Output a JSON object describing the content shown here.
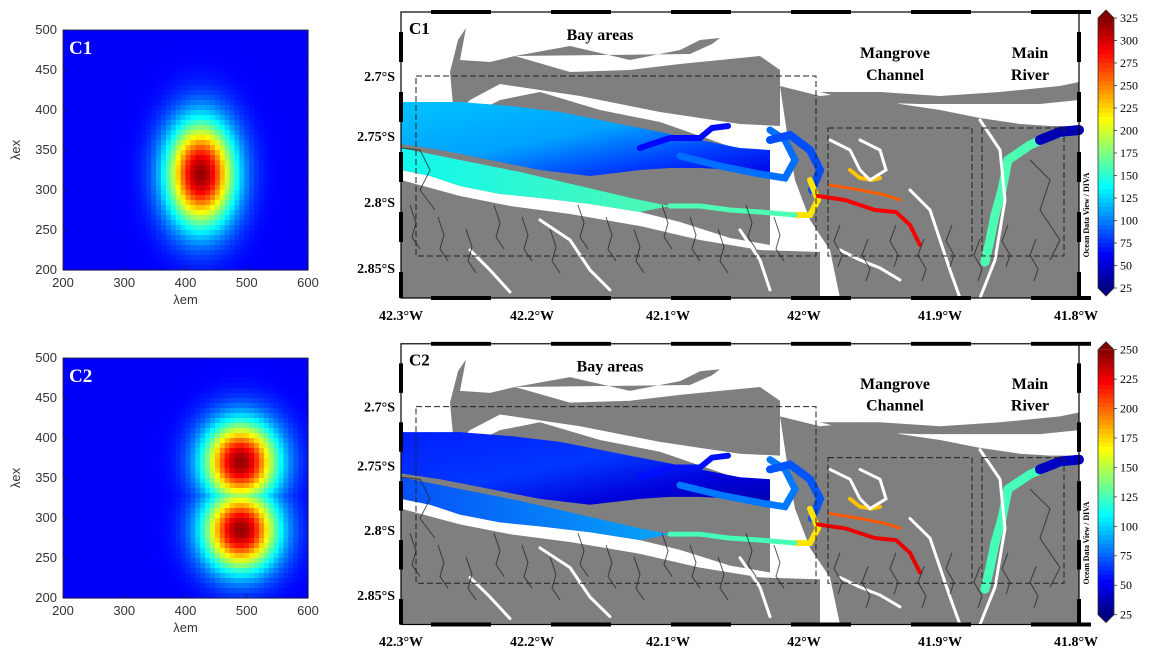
{
  "eem_panels": [
    {
      "label": "C1",
      "xlabel": "λem",
      "ylabel": "λex",
      "x_ticks": [
        "200",
        "300",
        "400",
        "500",
        "600"
      ],
      "y_ticks": [
        "200",
        "250",
        "300",
        "350",
        "400",
        "450",
        "500"
      ],
      "peaks": [
        {
          "em": 425,
          "ex": 320,
          "w_em": 55,
          "w_ex": 65
        }
      ]
    },
    {
      "label": "C2",
      "xlabel": "λem",
      "ylabel": "λex",
      "x_ticks": [
        "200",
        "300",
        "400",
        "500",
        "600"
      ],
      "y_ticks": [
        "200",
        "250",
        "300",
        "350",
        "400",
        "450",
        "500"
      ],
      "peaks": [
        {
          "em": 490,
          "ex": 370,
          "w_em": 60,
          "w_ex": 50
        },
        {
          "em": 490,
          "ex": 285,
          "w_em": 60,
          "w_ex": 50
        }
      ]
    }
  ],
  "maps": [
    {
      "label": "C1",
      "regions": [
        "Bay areas",
        "Mangrove Channel",
        "Main River"
      ],
      "lat_ticks": [
        "2.7°S",
        "2.75°S",
        "2.8°S",
        "2.85°S"
      ],
      "lon_ticks": [
        "42.3°W",
        "42.2°W",
        "42.1°W",
        "42°W",
        "41.9°W",
        "41.8°W"
      ],
      "colorbar": {
        "ticks": [
          "325",
          "300",
          "275",
          "250",
          "225",
          "200",
          "175",
          "150",
          "125",
          "100",
          "75",
          "50",
          "25"
        ],
        "min": 25,
        "max": 325
      },
      "credit": "Ocean Data View / DIVA"
    },
    {
      "label": "C2",
      "regions": [
        "Bay areas",
        "Mangrove Channel",
        "Main River"
      ],
      "lat_ticks": [
        "2.7°S",
        "2.75°S",
        "2.8°S",
        "2.85°S"
      ],
      "lon_ticks": [
        "42.3°W",
        "42.2°W",
        "42.1°W",
        "42°W",
        "41.9°W",
        "41.8°W"
      ],
      "colorbar": {
        "ticks": [
          "250",
          "225",
          "200",
          "175",
          "150",
          "125",
          "100",
          "75",
          "50",
          "25"
        ],
        "min": 25,
        "max": 250
      },
      "credit": "Ocean Data View / DIVA"
    }
  ],
  "colors": {
    "land": "#7f7f7f",
    "frame": "#000000",
    "channel": "#ffffff"
  }
}
